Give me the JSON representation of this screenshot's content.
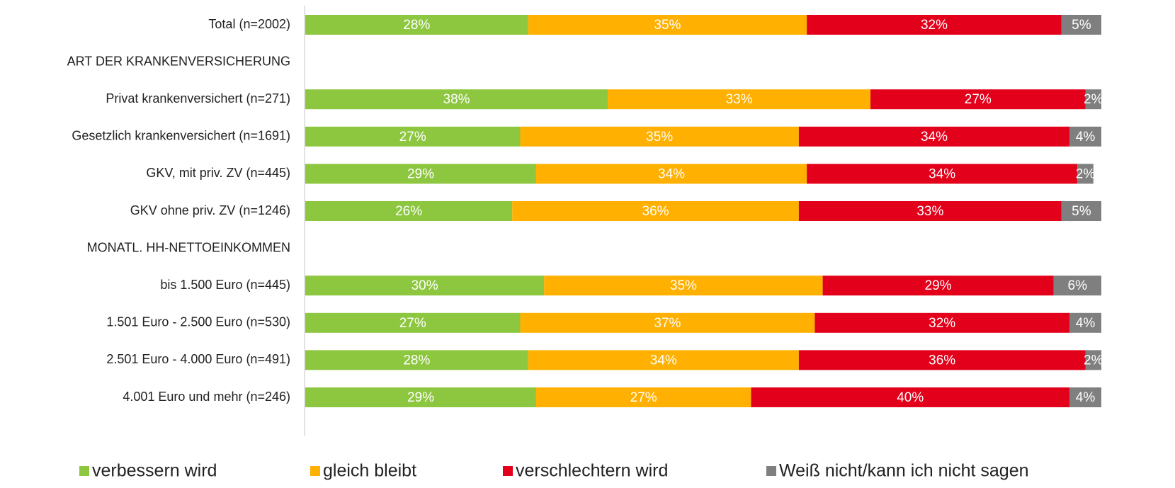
{
  "chart_data": {
    "type": "stacked-bar-horizontal",
    "categories": [
      "Total (n=2002)",
      "ART DER KRANKENVERSICHERUNG",
      "Privat krankenversichert (n=271)",
      "Gesetzlich krankenversichert (n=1691)",
      "GKV, mit priv. ZV (n=445)",
      "GKV ohne priv. ZV (n=1246)",
      "MONATL. HH-NETTOEINKOMMEN",
      "bis 1.500 Euro (n=445)",
      "1.501 Euro - 2.500 Euro (n=530)",
      "2.501 Euro - 4.000 Euro (n=491)",
      "4.001 Euro und mehr (n=246)"
    ],
    "series": [
      {
        "name": "verbessern wird",
        "color": "#8dc63f",
        "values": [
          28,
          null,
          38,
          27,
          29,
          26,
          null,
          30,
          27,
          28,
          29
        ],
        "value_labels": [
          "28%",
          null,
          "38%",
          "27%",
          "29%",
          "26%",
          null,
          "30%",
          "27%",
          "28%",
          "29%"
        ]
      },
      {
        "name": "gleich bleibt",
        "color": "#ffb000",
        "values": [
          35,
          null,
          33,
          35,
          34,
          36,
          null,
          35,
          37,
          34,
          27
        ],
        "value_labels": [
          "35%",
          null,
          "33%",
          "35%",
          "34%",
          "36%",
          null,
          "35%",
          "37%",
          "34%",
          "27%"
        ]
      },
      {
        "name": "verschlechtern wird",
        "color": "#e2001a",
        "values": [
          32,
          null,
          27,
          34,
          34,
          33,
          null,
          29,
          32,
          36,
          40
        ],
        "value_labels": [
          "32%",
          null,
          "27%",
          "34%",
          "34%",
          "33%",
          null,
          "29%",
          "32%",
          "36%",
          "40%"
        ]
      },
      {
        "name": "Weiß nicht/kann ich nicht sagen",
        "color": "#7f7f7f",
        "values": [
          5,
          null,
          2,
          4,
          2,
          5,
          null,
          6,
          4,
          2,
          4
        ],
        "value_labels": [
          "5%",
          null,
          "2%",
          "4%",
          "2%",
          "5%",
          null,
          "6%",
          "4%",
          "2%",
          "4%"
        ]
      }
    ],
    "xlim": [
      0,
      100
    ],
    "legend": "bottom"
  }
}
